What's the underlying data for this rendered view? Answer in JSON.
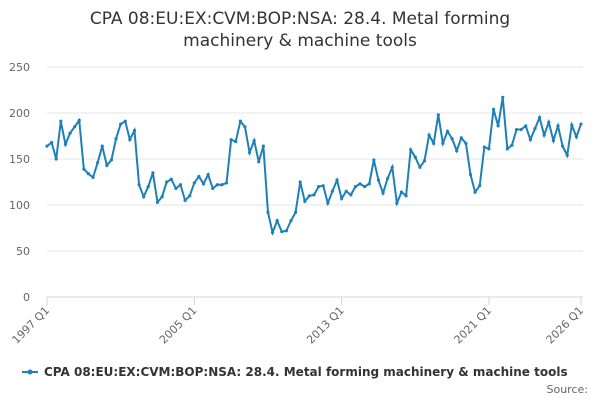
{
  "chart_data": {
    "type": "line",
    "title": "CPA 08:EU:EX:CVM:BOP:NSA: 28.4. Metal forming machinery & machine tools",
    "source": "Source:",
    "categories": [
      "1997 Q1",
      null,
      null,
      null,
      null,
      null,
      null,
      null,
      null,
      null,
      null,
      null,
      null,
      null,
      null,
      null,
      null,
      null,
      null,
      null,
      null,
      null,
      null,
      null,
      null,
      null,
      null,
      null,
      null,
      null,
      null,
      null,
      "2005 Q1",
      null,
      null,
      null,
      null,
      null,
      null,
      null,
      null,
      null,
      null,
      null,
      null,
      null,
      null,
      null,
      null,
      null,
      null,
      null,
      null,
      null,
      null,
      null,
      null,
      null,
      null,
      null,
      null,
      null,
      null,
      null,
      "2013 Q1",
      null,
      null,
      null,
      null,
      null,
      null,
      null,
      null,
      null,
      null,
      null,
      null,
      null,
      null,
      null,
      null,
      null,
      null,
      null,
      null,
      null,
      null,
      null,
      null,
      null,
      null,
      null,
      null,
      null,
      null,
      null,
      "2021 Q1",
      null,
      null,
      null,
      null,
      null,
      null,
      null,
      null,
      null,
      null,
      null,
      null,
      null,
      null,
      null,
      null,
      null,
      null,
      null,
      "2026 Q1"
    ],
    "series": [
      {
        "name": "CPA 08:EU:EX:CVM:BOP:NSA: 28.4. Metal forming machinery & machine tools",
        "color": "#1f80b8",
        "values": [
          164,
          168,
          150,
          191,
          166,
          178,
          185,
          192,
          139,
          134,
          130,
          146,
          164,
          143,
          149,
          172,
          188,
          191,
          171,
          181,
          122,
          109,
          120,
          135,
          103,
          109,
          125,
          128,
          118,
          122,
          105,
          110,
          124,
          131,
          123,
          133,
          118,
          122,
          122,
          124,
          171,
          169,
          191,
          185,
          157,
          170,
          147,
          164,
          92,
          70,
          83,
          71,
          72,
          83,
          92,
          125,
          104,
          110,
          111,
          120,
          121,
          102,
          115,
          127,
          107,
          115,
          111,
          120,
          123,
          120,
          123,
          149,
          127,
          113,
          129,
          141,
          102,
          114,
          110,
          160,
          152,
          141,
          148,
          176,
          167,
          198,
          167,
          180,
          172,
          159,
          173,
          167,
          133,
          114,
          121,
          163,
          161,
          204,
          186,
          217,
          161,
          165,
          182,
          182,
          186,
          171,
          183,
          195,
          176,
          190,
          170,
          186,
          164,
          154,
          187,
          174,
          188
        ]
      }
    ],
    "ylim": [
      0,
      250
    ],
    "yticks": [
      0,
      50,
      100,
      150,
      200,
      250
    ],
    "grid": true
  }
}
